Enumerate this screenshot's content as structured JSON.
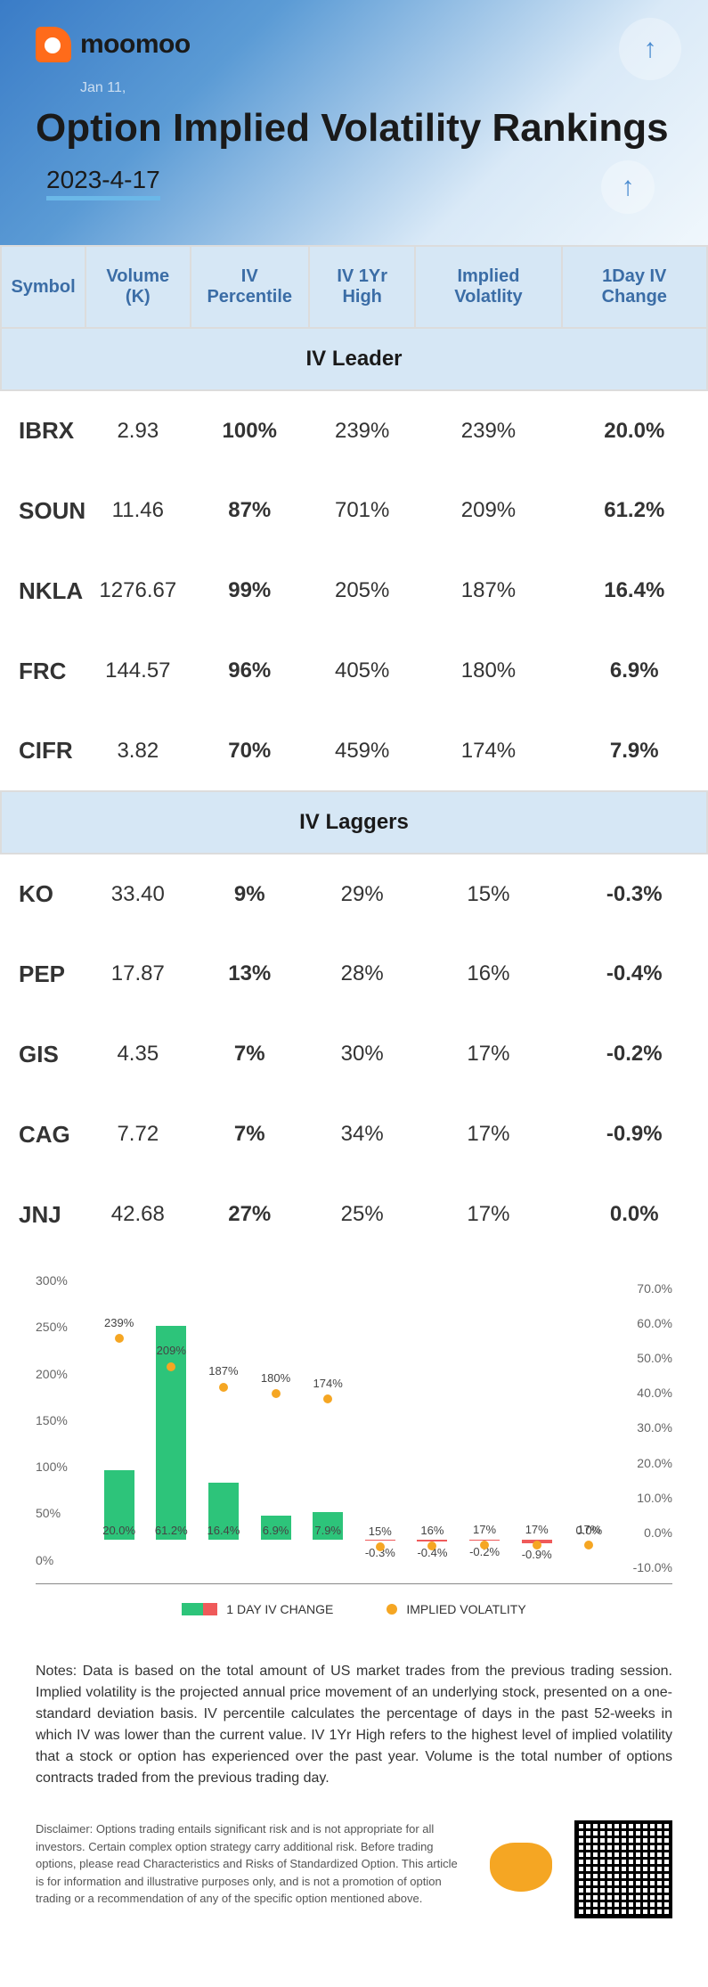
{
  "brand": "moomoo",
  "mini_date": "Jan 11,",
  "title": "Option Implied Volatility Rankings",
  "date": "2023-4-17",
  "columns": [
    "Symbol",
    "Volume (K)",
    "IV Percentile",
    "IV 1Yr High",
    "Implied Volatlity",
    "1Day IV Change"
  ],
  "sections": [
    {
      "label": "IV Leader",
      "rows": [
        {
          "symbol": "IBRX",
          "volume": "2.93",
          "iv_pct": "100%",
          "iv_high": "239%",
          "iv": "239%",
          "change": "20.0%",
          "sign": "pos"
        },
        {
          "symbol": "SOUN",
          "volume": "11.46",
          "iv_pct": "87%",
          "iv_high": "701%",
          "iv": "209%",
          "change": "61.2%",
          "sign": "pos"
        },
        {
          "symbol": "NKLA",
          "volume": "1276.67",
          "iv_pct": "99%",
          "iv_high": "205%",
          "iv": "187%",
          "change": "16.4%",
          "sign": "pos"
        },
        {
          "symbol": "FRC",
          "volume": "144.57",
          "iv_pct": "96%",
          "iv_high": "405%",
          "iv": "180%",
          "change": "6.9%",
          "sign": "pos"
        },
        {
          "symbol": "CIFR",
          "volume": "3.82",
          "iv_pct": "70%",
          "iv_high": "459%",
          "iv": "174%",
          "change": "7.9%",
          "sign": "pos"
        }
      ]
    },
    {
      "label": "IV Laggers",
      "rows": [
        {
          "symbol": "KO",
          "volume": "33.40",
          "iv_pct": "9%",
          "iv_high": "29%",
          "iv": "15%",
          "change": "-0.3%",
          "sign": "neg"
        },
        {
          "symbol": "PEP",
          "volume": "17.87",
          "iv_pct": "13%",
          "iv_high": "28%",
          "iv": "16%",
          "change": "-0.4%",
          "sign": "neg"
        },
        {
          "symbol": "GIS",
          "volume": "4.35",
          "iv_pct": "7%",
          "iv_high": "30%",
          "iv": "17%",
          "change": "-0.2%",
          "sign": "neg"
        },
        {
          "symbol": "CAG",
          "volume": "7.72",
          "iv_pct": "7%",
          "iv_high": "34%",
          "iv": "17%",
          "change": "-0.9%",
          "sign": "neg"
        },
        {
          "symbol": "JNJ",
          "volume": "42.68",
          "iv_pct": "27%",
          "iv_high": "25%",
          "iv": "17%",
          "change": "0.0%",
          "sign": "pos"
        }
      ]
    }
  ],
  "chart": {
    "type": "bar-with-markers",
    "background": "#ffffff",
    "bar_color_pos": "#2dc47a",
    "bar_color_neg": "#ef5a5a",
    "marker_color": "#f5a623",
    "left_axis": {
      "min": 0,
      "max": 300,
      "step": 50,
      "suffix": "%"
    },
    "right_axis": {
      "min": -10,
      "max": 70,
      "step": 10,
      "suffix": "%"
    },
    "legend_bar": "1 DAY IV CHANGE",
    "legend_marker": "IMPLIED VOLATLITY",
    "points": [
      {
        "iv": 239,
        "change": 20.0,
        "change_label": "20.0%",
        "iv_label": "239%"
      },
      {
        "iv": 209,
        "change": 61.2,
        "change_label": "61.2%",
        "iv_label": "209%"
      },
      {
        "iv": 187,
        "change": 16.4,
        "change_label": "16.4%",
        "iv_label": "187%"
      },
      {
        "iv": 180,
        "change": 6.9,
        "change_label": "6.9%",
        "iv_label": "180%"
      },
      {
        "iv": 174,
        "change": 7.9,
        "change_label": "7.9%",
        "iv_label": "174%"
      },
      {
        "iv": 15,
        "change": -0.3,
        "change_label": "-0.3%",
        "iv_label": "15%"
      },
      {
        "iv": 16,
        "change": -0.4,
        "change_label": "-0.4%",
        "iv_label": "16%"
      },
      {
        "iv": 17,
        "change": -0.2,
        "change_label": "-0.2%",
        "iv_label": "17%"
      },
      {
        "iv": 17,
        "change": -0.9,
        "change_label": "-0.9%",
        "iv_label": "17%"
      },
      {
        "iv": 17,
        "change": 0.0,
        "change_label": "0.0%",
        "iv_label": "17%"
      }
    ]
  },
  "notes": "Notes: Data is based on the total amount of US market trades from the previous trading session. Implied volatility is the projected annual price movement of an underlying stock, presented on a one-standard deviation basis. IV percentile calculates the percentage of days in the past 52-weeks in which IV was lower than the current value. IV 1Yr High refers to the highest level of implied volatility that a stock or option has experienced over the past year. Volume is the total number of options contracts traded from the previous trading day.",
  "disclaimer": "Disclaimer: Options trading entails significant risk and is not appropriate for all investors. Certain complex option strategy carry additional risk. Before trading options, please read Characteristics and Risks of Standardized Option. This article is for information and illustrative purposes only, and is not a promotion of option trading or a recommendation of any of the specific option mentioned above."
}
